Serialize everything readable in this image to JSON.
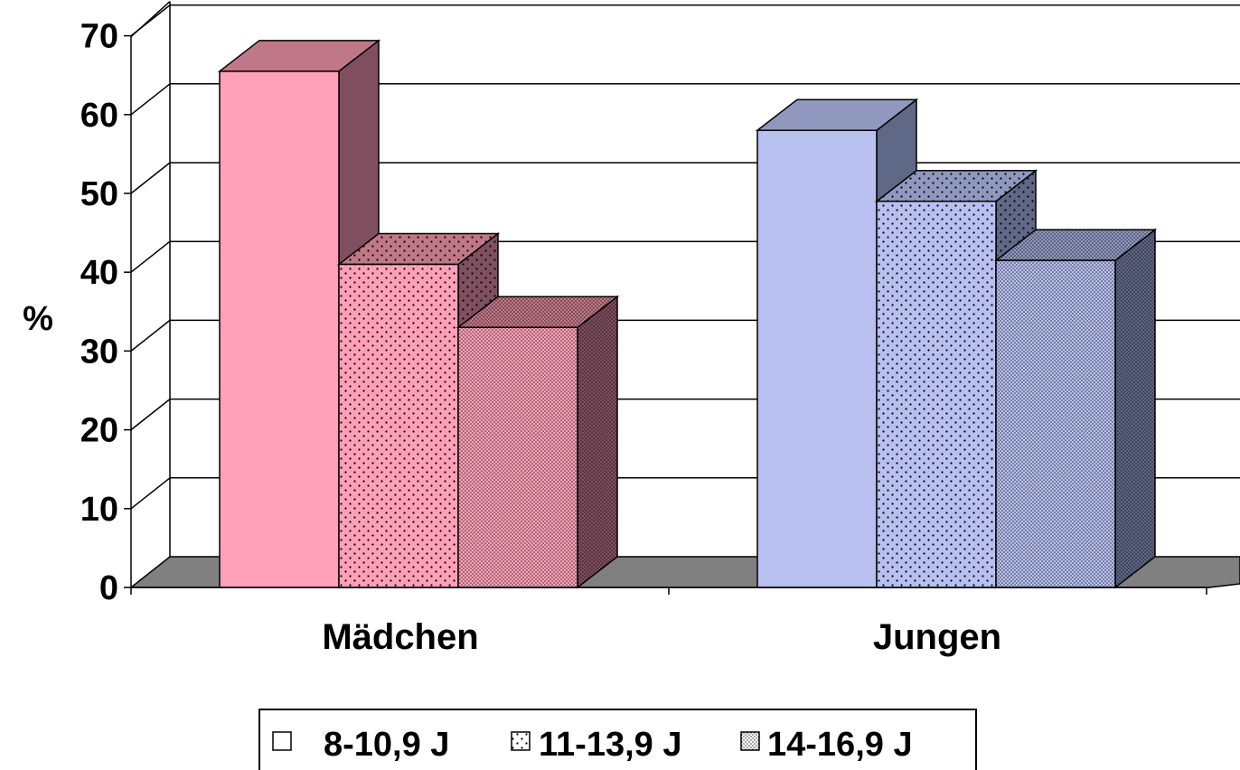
{
  "chart_data": {
    "type": "bar",
    "title": "",
    "xlabel": "",
    "ylabel": "%",
    "categories": [
      "Mädchen",
      "Jungen"
    ],
    "series": [
      {
        "name": "8-10,9 J",
        "values": [
          65.5,
          58
        ]
      },
      {
        "name": "11-13,9 J",
        "values": [
          41,
          49
        ]
      },
      {
        "name": "14-16,9 J",
        "values": [
          33,
          41.5
        ]
      }
    ],
    "ylim": [
      0,
      70
    ],
    "yticks": [
      0,
      10,
      20,
      30,
      40,
      50,
      60,
      70
    ],
    "grid": true,
    "legend": "bottom",
    "colors": {
      "Mädchen": {
        "front": "#ffa0b8",
        "side": "#805060",
        "top": "#c07888"
      },
      "Jungen": {
        "front": "#b8c0f0",
        "side": "#606888",
        "top": "#9098c0"
      },
      "floor": "#808080"
    }
  }
}
